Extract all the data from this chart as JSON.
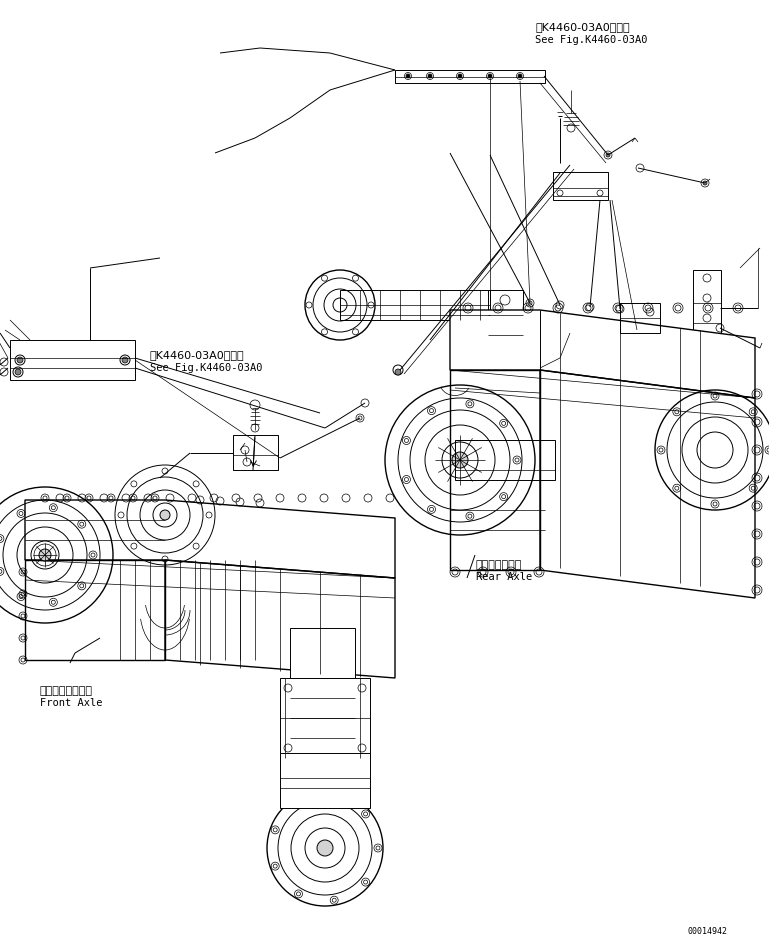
{
  "bg_color": "#ffffff",
  "line_color": "#000000",
  "fig_width": 7.69,
  "fig_height": 9.48,
  "dpi": 100,
  "part_number": "00014942",
  "labels": {
    "rear_axle_jp": "リヤーアクスル",
    "rear_axle_en": "Rear Axle",
    "front_axle_jp": "フロントアクスル",
    "front_axle_en": "Front Axle",
    "see_fig_jp1": "第K4460-03A0図参照",
    "see_fig_en1": "See Fig.K4460-03A0",
    "see_fig_jp2": "第K4460-03A0図参照",
    "see_fig_en2": "See Fig.K4460-03A0"
  }
}
